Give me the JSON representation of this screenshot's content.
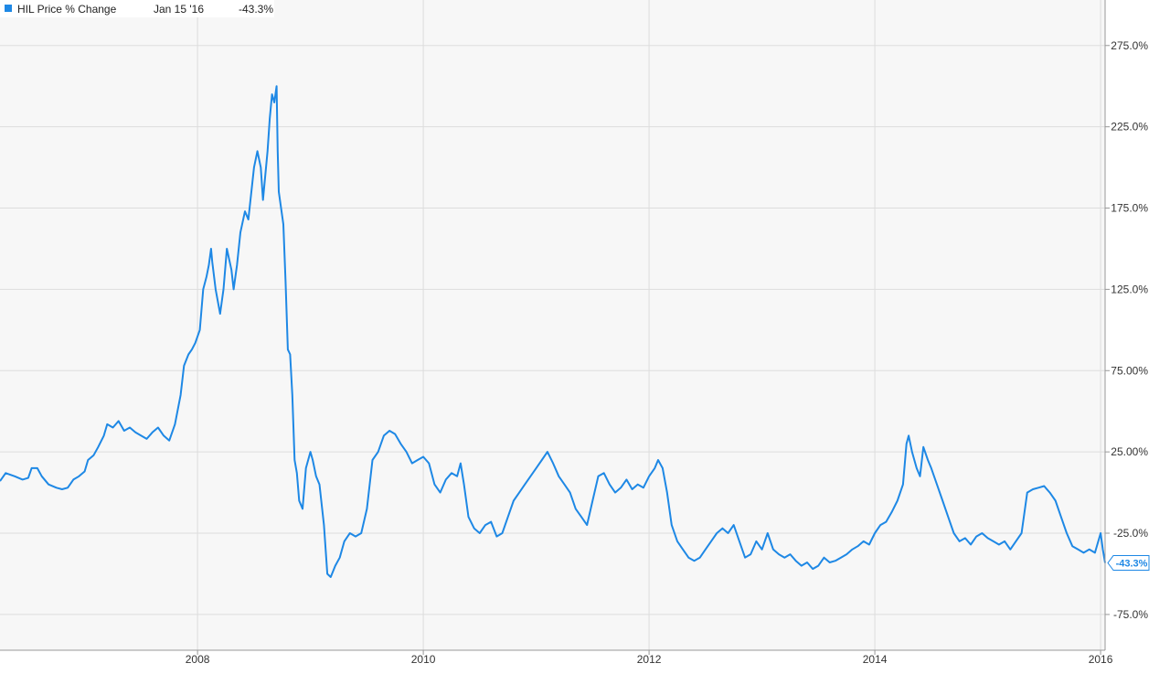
{
  "legend": {
    "series_name": "HIL Price % Change",
    "date": "Jan 15 '16",
    "value": "-43.3%"
  },
  "end_badge": "-43.3%",
  "colors": {
    "line": "#1e88e5",
    "grid": "#dddddd",
    "plot_bg": "#f7f7f7",
    "axis": "#999999"
  },
  "chart_data": {
    "type": "line",
    "title": "",
    "xlabel": "",
    "ylabel": "",
    "grid": true,
    "legend_placement": "top-left",
    "xlim": [
      2006.25,
      2016.04
    ],
    "ylim": [
      -97,
      303
    ],
    "y_ticks": [
      {
        "value": 275,
        "label": "275.0%"
      },
      {
        "value": 225,
        "label": "225.0%"
      },
      {
        "value": 175,
        "label": "175.0%"
      },
      {
        "value": 125,
        "label": "125.0%"
      },
      {
        "value": 75,
        "label": "75.00%"
      },
      {
        "value": 25,
        "label": "25.00%"
      },
      {
        "value": -25,
        "label": "-25.0%"
      },
      {
        "value": -75,
        "label": "-75.0%"
      }
    ],
    "x_ticks": [
      {
        "value": 2008,
        "label": "2008"
      },
      {
        "value": 2010,
        "label": "2010"
      },
      {
        "value": 2012,
        "label": "2012"
      },
      {
        "value": 2014,
        "label": "2014"
      },
      {
        "value": 2016,
        "label": "2016"
      }
    ],
    "series": [
      {
        "name": "HIL Price % Change",
        "points": [
          [
            2006.25,
            7
          ],
          [
            2006.3,
            12
          ],
          [
            2006.38,
            10
          ],
          [
            2006.45,
            8
          ],
          [
            2006.5,
            9
          ],
          [
            2006.53,
            15
          ],
          [
            2006.58,
            15
          ],
          [
            2006.62,
            10
          ],
          [
            2006.68,
            5
          ],
          [
            2006.75,
            3
          ],
          [
            2006.8,
            2
          ],
          [
            2006.85,
            3
          ],
          [
            2006.9,
            8
          ],
          [
            2006.95,
            10
          ],
          [
            2007.0,
            13
          ],
          [
            2007.03,
            20
          ],
          [
            2007.08,
            23
          ],
          [
            2007.12,
            28
          ],
          [
            2007.17,
            35
          ],
          [
            2007.2,
            42
          ],
          [
            2007.25,
            40
          ],
          [
            2007.3,
            44
          ],
          [
            2007.35,
            38
          ],
          [
            2007.4,
            40
          ],
          [
            2007.45,
            37
          ],
          [
            2007.5,
            35
          ],
          [
            2007.55,
            33
          ],
          [
            2007.6,
            37
          ],
          [
            2007.65,
            40
          ],
          [
            2007.7,
            35
          ],
          [
            2007.75,
            32
          ],
          [
            2007.8,
            42
          ],
          [
            2007.85,
            60
          ],
          [
            2007.88,
            78
          ],
          [
            2007.92,
            85
          ],
          [
            2007.95,
            88
          ],
          [
            2007.98,
            92
          ],
          [
            2008.02,
            100
          ],
          [
            2008.05,
            125
          ],
          [
            2008.08,
            133
          ],
          [
            2008.1,
            140
          ],
          [
            2008.12,
            150
          ],
          [
            2008.13,
            142
          ],
          [
            2008.16,
            125
          ],
          [
            2008.2,
            110
          ],
          [
            2008.23,
            125
          ],
          [
            2008.26,
            150
          ],
          [
            2008.3,
            137
          ],
          [
            2008.32,
            125
          ],
          [
            2008.35,
            140
          ],
          [
            2008.38,
            160
          ],
          [
            2008.42,
            173
          ],
          [
            2008.45,
            168
          ],
          [
            2008.5,
            200
          ],
          [
            2008.53,
            210
          ],
          [
            2008.56,
            200
          ],
          [
            2008.58,
            180
          ],
          [
            2008.6,
            195
          ],
          [
            2008.62,
            210
          ],
          [
            2008.64,
            230
          ],
          [
            2008.66,
            245
          ],
          [
            2008.68,
            240
          ],
          [
            2008.7,
            250
          ],
          [
            2008.71,
            210
          ],
          [
            2008.72,
            185
          ],
          [
            2008.74,
            175
          ],
          [
            2008.76,
            165
          ],
          [
            2008.78,
            130
          ],
          [
            2008.8,
            88
          ],
          [
            2008.82,
            85
          ],
          [
            2008.84,
            60
          ],
          [
            2008.86,
            20
          ],
          [
            2008.88,
            12
          ],
          [
            2008.9,
            -5
          ],
          [
            2008.93,
            -10
          ],
          [
            2008.96,
            15
          ],
          [
            2009.0,
            25
          ],
          [
            2009.02,
            20
          ],
          [
            2009.05,
            10
          ],
          [
            2009.08,
            5
          ],
          [
            2009.12,
            -20
          ],
          [
            2009.15,
            -50
          ],
          [
            2009.18,
            -52
          ],
          [
            2009.22,
            -45
          ],
          [
            2009.26,
            -40
          ],
          [
            2009.3,
            -30
          ],
          [
            2009.35,
            -25
          ],
          [
            2009.4,
            -27
          ],
          [
            2009.45,
            -25
          ],
          [
            2009.5,
            -10
          ],
          [
            2009.55,
            20
          ],
          [
            2009.6,
            25
          ],
          [
            2009.65,
            35
          ],
          [
            2009.7,
            38
          ],
          [
            2009.75,
            36
          ],
          [
            2009.8,
            30
          ],
          [
            2009.85,
            25
          ],
          [
            2009.9,
            18
          ],
          [
            2009.95,
            20
          ],
          [
            2010.0,
            22
          ],
          [
            2010.05,
            18
          ],
          [
            2010.1,
            5
          ],
          [
            2010.15,
            0
          ],
          [
            2010.2,
            8
          ],
          [
            2010.25,
            12
          ],
          [
            2010.3,
            10
          ],
          [
            2010.33,
            18
          ],
          [
            2010.36,
            5
          ],
          [
            2010.4,
            -15
          ],
          [
            2010.45,
            -22
          ],
          [
            2010.5,
            -25
          ],
          [
            2010.55,
            -20
          ],
          [
            2010.6,
            -18
          ],
          [
            2010.65,
            -27
          ],
          [
            2010.7,
            -25
          ],
          [
            2010.75,
            -15
          ],
          [
            2010.8,
            -5
          ],
          [
            2010.85,
            0
          ],
          [
            2010.9,
            5
          ],
          [
            2010.95,
            10
          ],
          [
            2011.0,
            15
          ],
          [
            2011.05,
            20
          ],
          [
            2011.1,
            25
          ],
          [
            2011.15,
            18
          ],
          [
            2011.2,
            10
          ],
          [
            2011.25,
            5
          ],
          [
            2011.3,
            0
          ],
          [
            2011.35,
            -10
          ],
          [
            2011.4,
            -15
          ],
          [
            2011.45,
            -20
          ],
          [
            2011.5,
            -5
          ],
          [
            2011.55,
            10
          ],
          [
            2011.6,
            12
          ],
          [
            2011.65,
            5
          ],
          [
            2011.7,
            0
          ],
          [
            2011.75,
            3
          ],
          [
            2011.8,
            8
          ],
          [
            2011.85,
            2
          ],
          [
            2011.9,
            5
          ],
          [
            2011.95,
            3
          ],
          [
            2012.0,
            10
          ],
          [
            2012.05,
            15
          ],
          [
            2012.08,
            20
          ],
          [
            2012.12,
            15
          ],
          [
            2012.16,
            0
          ],
          [
            2012.2,
            -20
          ],
          [
            2012.25,
            -30
          ],
          [
            2012.3,
            -35
          ],
          [
            2012.35,
            -40
          ],
          [
            2012.4,
            -42
          ],
          [
            2012.45,
            -40
          ],
          [
            2012.5,
            -35
          ],
          [
            2012.55,
            -30
          ],
          [
            2012.6,
            -25
          ],
          [
            2012.65,
            -22
          ],
          [
            2012.7,
            -25
          ],
          [
            2012.75,
            -20
          ],
          [
            2012.8,
            -30
          ],
          [
            2012.85,
            -40
          ],
          [
            2012.9,
            -38
          ],
          [
            2012.95,
            -30
          ],
          [
            2013.0,
            -35
          ],
          [
            2013.05,
            -25
          ],
          [
            2013.1,
            -35
          ],
          [
            2013.15,
            -38
          ],
          [
            2013.2,
            -40
          ],
          [
            2013.25,
            -38
          ],
          [
            2013.3,
            -42
          ],
          [
            2013.35,
            -45
          ],
          [
            2013.4,
            -43
          ],
          [
            2013.45,
            -47
          ],
          [
            2013.5,
            -45
          ],
          [
            2013.55,
            -40
          ],
          [
            2013.6,
            -43
          ],
          [
            2013.65,
            -42
          ],
          [
            2013.7,
            -40
          ],
          [
            2013.75,
            -38
          ],
          [
            2013.8,
            -35
          ],
          [
            2013.85,
            -33
          ],
          [
            2013.9,
            -30
          ],
          [
            2013.95,
            -32
          ],
          [
            2014.0,
            -25
          ],
          [
            2014.05,
            -20
          ],
          [
            2014.1,
            -18
          ],
          [
            2014.15,
            -12
          ],
          [
            2014.2,
            -5
          ],
          [
            2014.25,
            5
          ],
          [
            2014.28,
            30
          ],
          [
            2014.3,
            35
          ],
          [
            2014.33,
            25
          ],
          [
            2014.37,
            15
          ],
          [
            2014.4,
            10
          ],
          [
            2014.43,
            28
          ],
          [
            2014.47,
            20
          ],
          [
            2014.5,
            15
          ],
          [
            2014.55,
            5
          ],
          [
            2014.6,
            -5
          ],
          [
            2014.65,
            -15
          ],
          [
            2014.7,
            -25
          ],
          [
            2014.75,
            -30
          ],
          [
            2014.8,
            -28
          ],
          [
            2014.85,
            -32
          ],
          [
            2014.9,
            -27
          ],
          [
            2014.95,
            -25
          ],
          [
            2015.0,
            -28
          ],
          [
            2015.05,
            -30
          ],
          [
            2015.1,
            -32
          ],
          [
            2015.15,
            -30
          ],
          [
            2015.2,
            -35
          ],
          [
            2015.25,
            -30
          ],
          [
            2015.3,
            -25
          ],
          [
            2015.35,
            0
          ],
          [
            2015.4,
            2
          ],
          [
            2015.45,
            3
          ],
          [
            2015.5,
            4
          ],
          [
            2015.55,
            0
          ],
          [
            2015.6,
            -5
          ],
          [
            2015.65,
            -15
          ],
          [
            2015.7,
            -25
          ],
          [
            2015.75,
            -33
          ],
          [
            2015.8,
            -35
          ],
          [
            2015.85,
            -37
          ],
          [
            2015.9,
            -35
          ],
          [
            2015.95,
            -37
          ],
          [
            2016.0,
            -25
          ],
          [
            2016.02,
            -35
          ],
          [
            2016.04,
            -43.3
          ]
        ]
      }
    ]
  }
}
